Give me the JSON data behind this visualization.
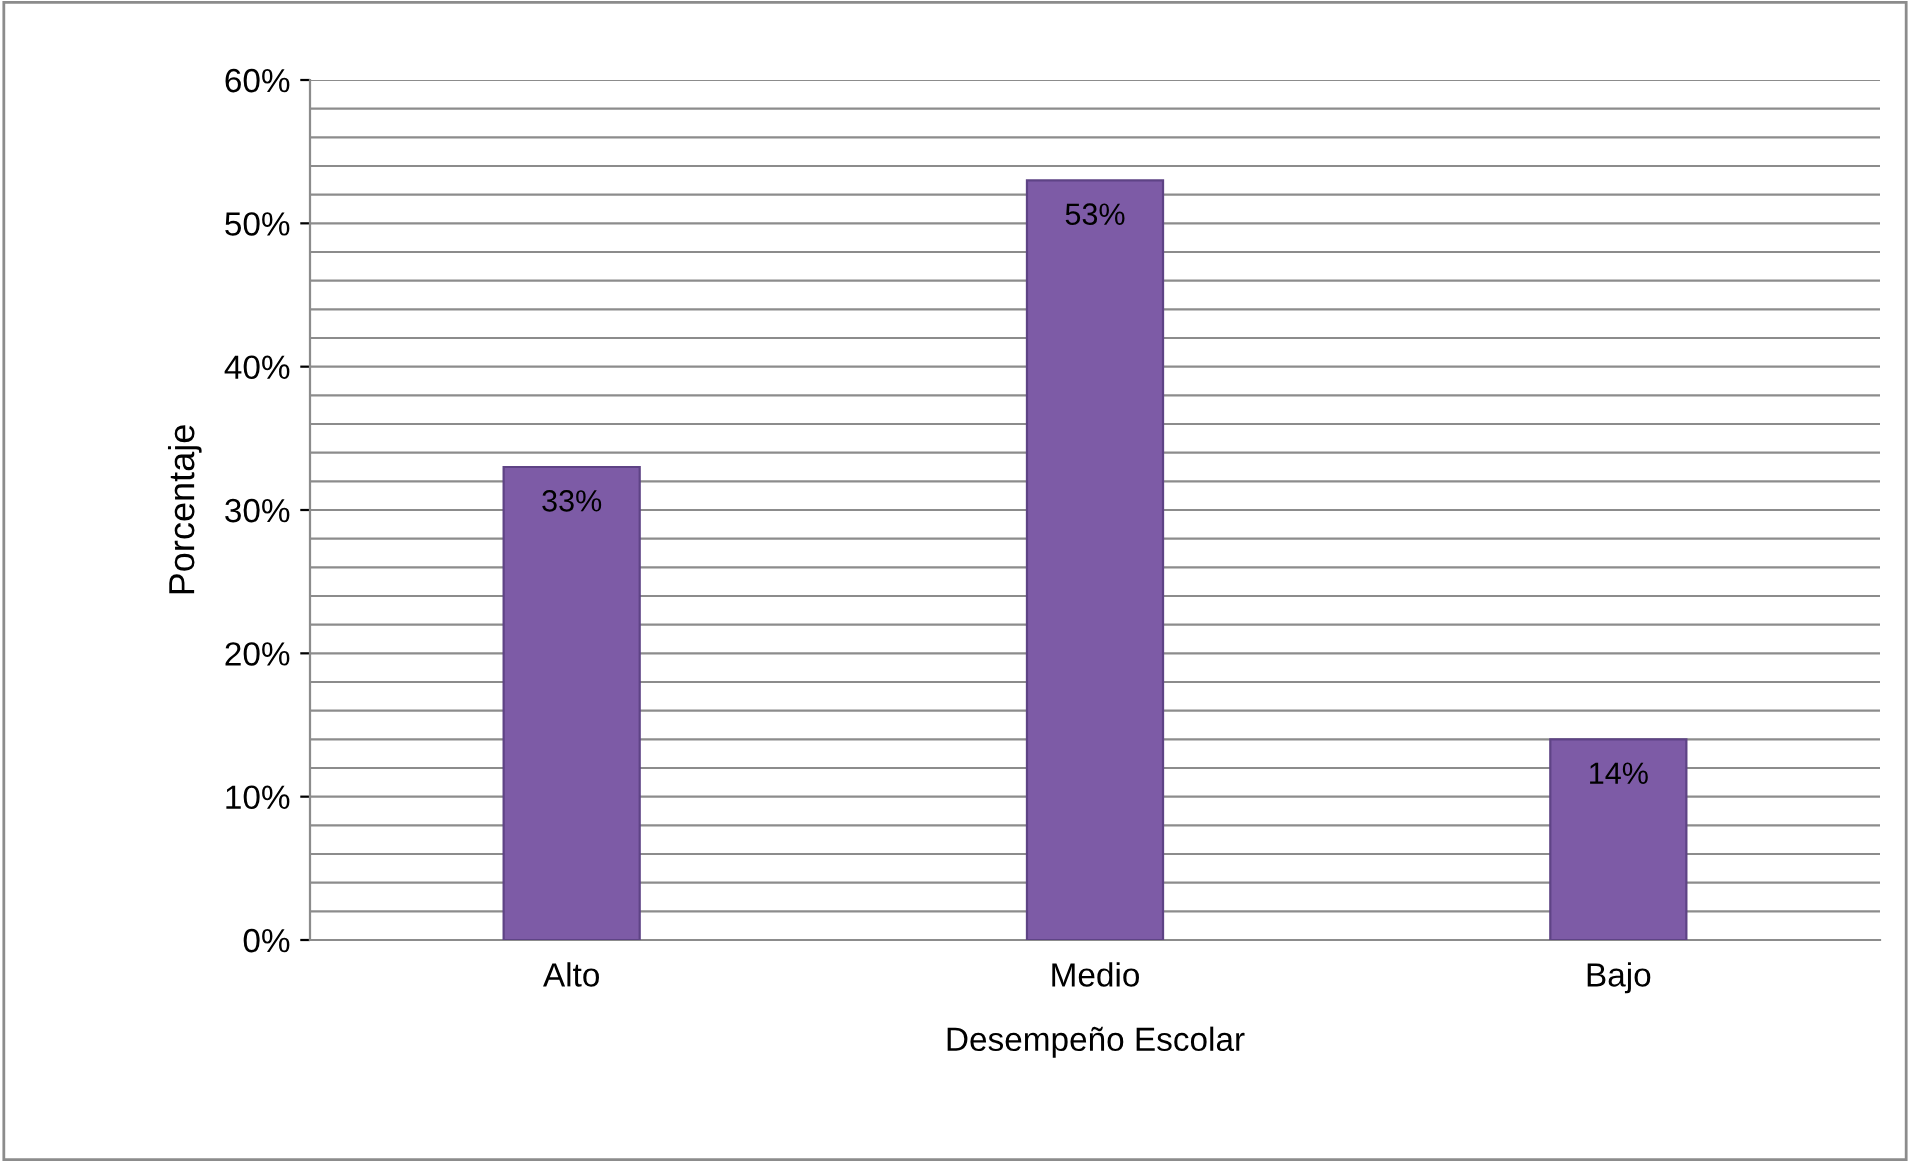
{
  "chart_data": {
    "type": "bar",
    "xlabel": "Desempeño Escolar",
    "ylabel": "Porcentaje",
    "categories": [
      "Alto",
      "Medio",
      "Bajo"
    ],
    "values": [
      33,
      53,
      14
    ],
    "value_labels": [
      "33%",
      "53%",
      "14%"
    ],
    "color": "#7d5ba6",
    "ylim": [
      0,
      60
    ],
    "yticks": [
      {
        "value": 0,
        "label": "0%"
      },
      {
        "value": 2,
        "label": null
      },
      {
        "value": 4,
        "label": null
      },
      {
        "value": 6,
        "label": null
      },
      {
        "value": 8,
        "label": null
      },
      {
        "value": 10,
        "label": "10%"
      },
      {
        "value": 12,
        "label": null
      },
      {
        "value": 14,
        "label": null
      },
      {
        "value": 16,
        "label": null
      },
      {
        "value": 18,
        "label": null
      },
      {
        "value": 20,
        "label": "20%"
      },
      {
        "value": 22,
        "label": null
      },
      {
        "value": 24,
        "label": null
      },
      {
        "value": 26,
        "label": null
      },
      {
        "value": 28,
        "label": null
      },
      {
        "value": 30,
        "label": "30%"
      },
      {
        "value": 32,
        "label": null
      },
      {
        "value": 34,
        "label": null
      },
      {
        "value": 36,
        "label": null
      },
      {
        "value": 38,
        "label": null
      },
      {
        "value": 40,
        "label": "40%"
      },
      {
        "value": 42,
        "label": null
      },
      {
        "value": 44,
        "label": null
      },
      {
        "value": 46,
        "label": null
      },
      {
        "value": 48,
        "label": null
      },
      {
        "value": 50,
        "label": "50%"
      },
      {
        "value": 52,
        "label": null
      },
      {
        "value": 54,
        "label": null
      },
      {
        "value": 56,
        "label": null
      },
      {
        "value": 58,
        "label": null
      },
      {
        "value": 60,
        "label": "60%"
      }
    ],
    "grid": "y",
    "legend": false
  }
}
